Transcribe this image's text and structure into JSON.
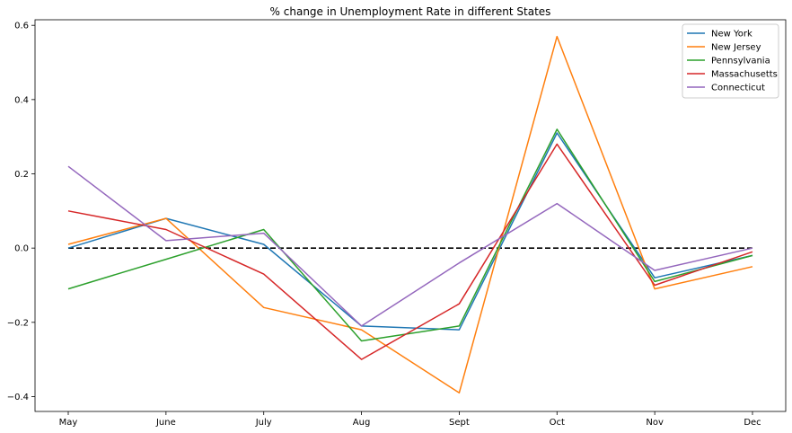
{
  "chart_data": {
    "type": "line",
    "title": "% change in Unemployment Rate in different States",
    "xlabel": "",
    "ylabel": "",
    "categories": [
      "May",
      "June",
      "July",
      "Aug",
      "Sept",
      "Oct",
      "Nov",
      "Dec"
    ],
    "ylim": [
      -0.44,
      0.615
    ],
    "yticks": [
      -0.4,
      -0.2,
      0.0,
      0.2,
      0.4,
      0.6
    ],
    "ytick_labels": [
      "−0.4",
      "−0.2",
      "0.0",
      "0.2",
      "0.4",
      "0.6"
    ],
    "grid": false,
    "legend_position": "top-right",
    "reference_line": {
      "y": 0.0,
      "style": "dashed",
      "color": "#000000"
    },
    "series": [
      {
        "name": "New York",
        "color": "#1f77b4",
        "values": [
          0.0,
          0.08,
          0.01,
          -0.21,
          -0.22,
          0.31,
          -0.08,
          -0.02
        ]
      },
      {
        "name": "New Jersey",
        "color": "#ff7f0e",
        "values": [
          0.01,
          0.08,
          -0.16,
          -0.22,
          -0.39,
          0.57,
          -0.11,
          -0.05
        ]
      },
      {
        "name": "Pennsylvania",
        "color": "#2ca02c",
        "values": [
          -0.11,
          -0.03,
          0.05,
          -0.25,
          -0.21,
          0.32,
          -0.09,
          -0.02
        ]
      },
      {
        "name": "Massachusetts",
        "color": "#d62728",
        "values": [
          0.1,
          0.05,
          -0.07,
          -0.3,
          -0.15,
          0.28,
          -0.1,
          -0.01
        ]
      },
      {
        "name": "Connecticut",
        "color": "#9467bd",
        "values": [
          0.22,
          0.02,
          0.04,
          -0.21,
          -0.04,
          0.12,
          -0.06,
          0.0
        ]
      }
    ]
  }
}
